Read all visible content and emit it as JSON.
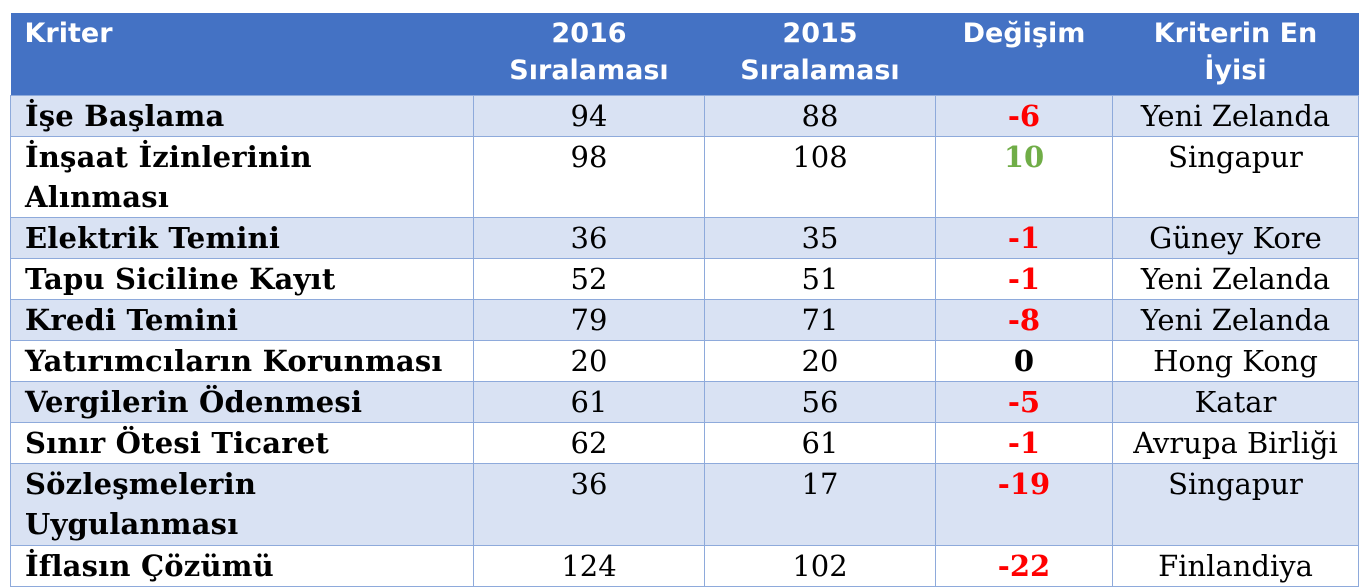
{
  "header": {
    "kriter": "Kriter",
    "y2016": "2016 Sıralaması",
    "y2015": "2015 Sıralaması",
    "degisim": "Değişim",
    "en_iyisi": "Kriterin En İyisi"
  },
  "rows": [
    {
      "name": "İşe Başlama",
      "r2016": "94",
      "r2015": "88",
      "change": "-6",
      "change_color": "#ff0000",
      "best": "Yeni Zelanda"
    },
    {
      "name": "İnşaat İzinlerinin Alınması",
      "r2016": "98",
      "r2015": "108",
      "change": "10",
      "change_color": "#70ad47",
      "best": "Singapur"
    },
    {
      "name": "Elektrik Temini",
      "r2016": "36",
      "r2015": "35",
      "change": "-1",
      "change_color": "#ff0000",
      "best": "Güney Kore"
    },
    {
      "name": "Tapu Siciline Kayıt",
      "r2016": "52",
      "r2015": "51",
      "change": "-1",
      "change_color": "#ff0000",
      "best": "Yeni Zelanda"
    },
    {
      "name": "Kredi Temini",
      "r2016": "79",
      "r2015": "71",
      "change": "-8",
      "change_color": "#ff0000",
      "best": "Yeni Zelanda"
    },
    {
      "name": "Yatırımcıların Korunması",
      "r2016": "20",
      "r2015": "20",
      "change": "0",
      "change_color": "#000000",
      "best": "Hong Kong"
    },
    {
      "name": "Vergilerin Ödenmesi",
      "r2016": "61",
      "r2015": "56",
      "change": "-5",
      "change_color": "#ff0000",
      "best": "Katar"
    },
    {
      "name": "Sınır Ötesi Ticaret",
      "r2016": "62",
      "r2015": "61",
      "change": "-1",
      "change_color": "#ff0000",
      "best": "Avrupa Birliği"
    },
    {
      "name": "Sözleşmelerin Uygulanması",
      "r2016": "36",
      "r2015": "17",
      "change": "-19",
      "change_color": "#ff0000",
      "best": "Singapur"
    },
    {
      "name": "İflasın Çözümü",
      "r2016": "124",
      "r2015": "102",
      "change": "-22",
      "change_color": "#ff0000",
      "best": "Finlandiya"
    }
  ]
}
